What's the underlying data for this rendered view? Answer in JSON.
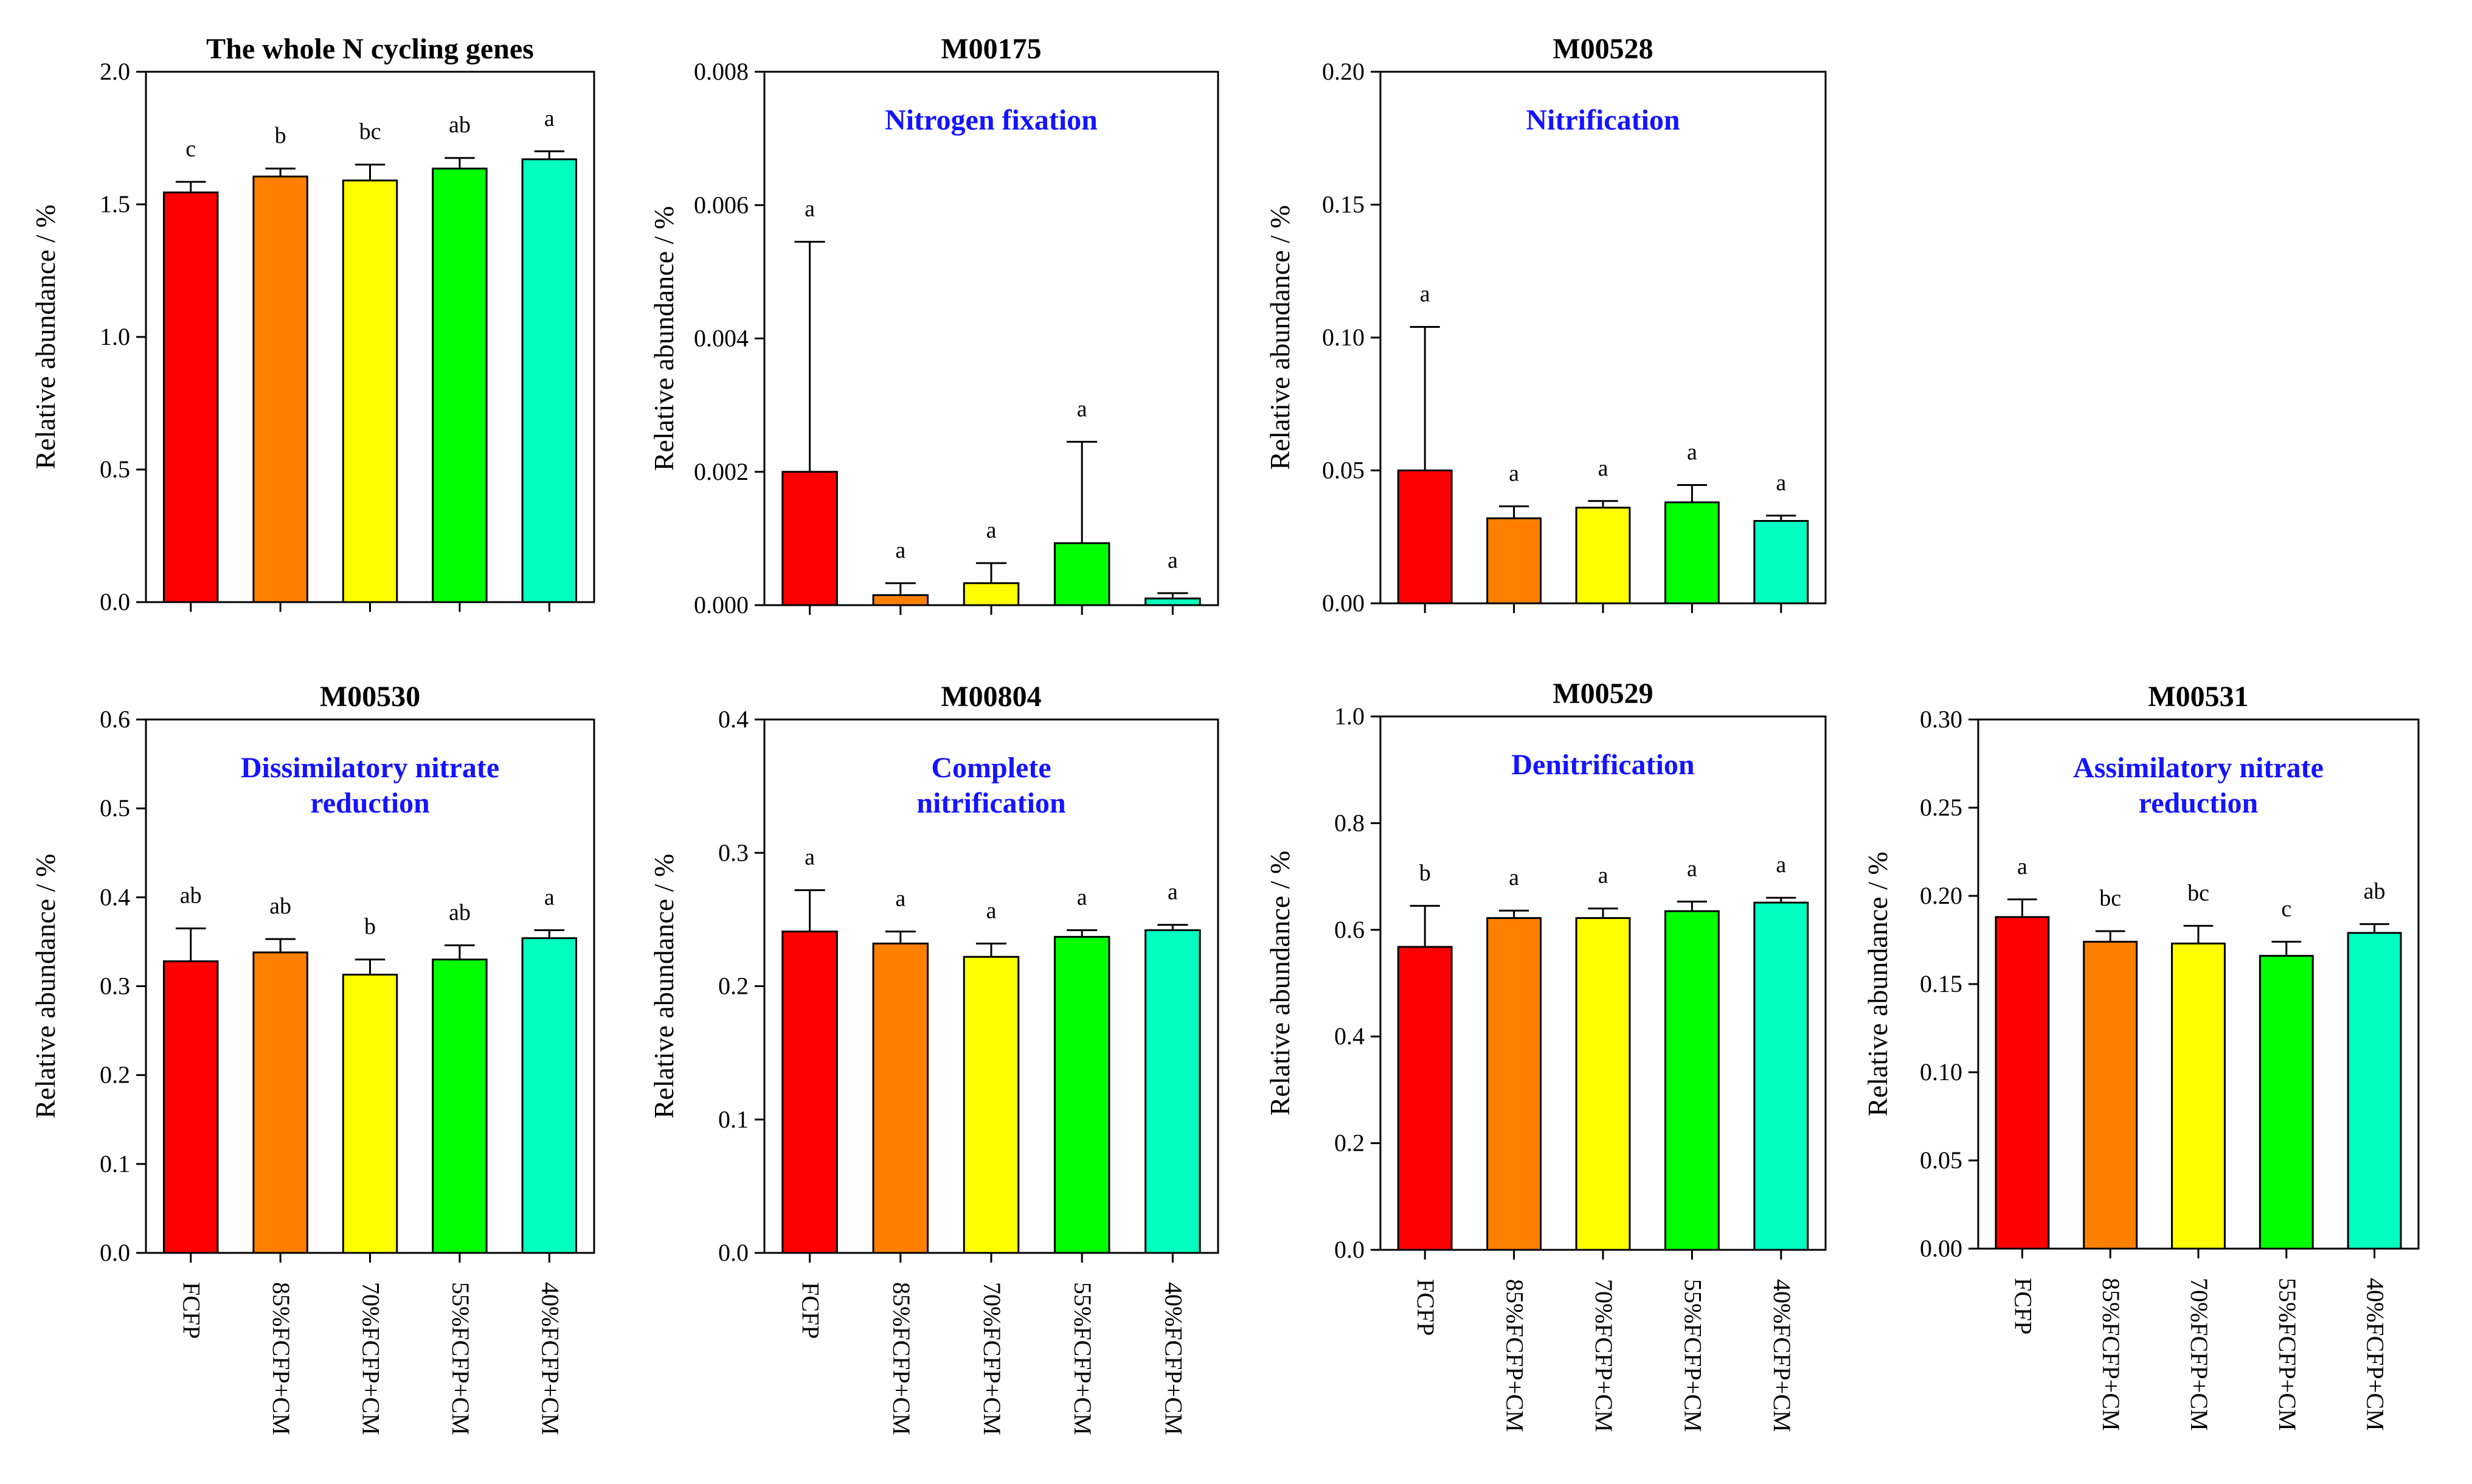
{
  "figure": {
    "categories": [
      "FCFP",
      "85%FCFP+CM",
      "70%FCFP+CM",
      "55%FCFP+CM",
      "40%FCFP+CM"
    ],
    "colors": [
      "#ff0000",
      "#ff8000",
      "#ffff00",
      "#00ff00",
      "#00ffc0"
    ],
    "subtitle_color": "#1414ff"
  },
  "chart_data": [
    {
      "type": "bar",
      "title": "The whole N cycling genes",
      "subtitle": [],
      "ylabel": "Relative abundance / %",
      "ylim": [
        0,
        2.0
      ],
      "yticks": [
        "0.0",
        "0.5",
        "1.0",
        "1.5",
        "2.0"
      ],
      "categories": [
        "FCFP",
        "85%FCFP+CM",
        "70%FCFP+CM",
        "55%FCFP+CM",
        "40%FCFP+CM"
      ],
      "show_category_labels": false,
      "values": [
        1.545,
        1.605,
        1.59,
        1.635,
        1.67
      ],
      "errors": [
        0.04,
        0.03,
        0.06,
        0.04,
        0.03
      ],
      "letters": [
        "c",
        "b",
        "bc",
        "ab",
        "a"
      ]
    },
    {
      "type": "bar",
      "title": "M00175",
      "subtitle": [
        "Nitrogen fixation"
      ],
      "ylabel": "Relative abundance / %",
      "ylim": [
        0,
        0.008
      ],
      "yticks": [
        "0.000",
        "0.002",
        "0.004",
        "0.006",
        "0.008"
      ],
      "categories": [
        "FCFP",
        "85%FCFP+CM",
        "70%FCFP+CM",
        "55%FCFP+CM",
        "40%FCFP+CM"
      ],
      "show_category_labels": false,
      "values": [
        0.002,
        0.00015,
        0.00033,
        0.00093,
        0.0001
      ],
      "errors": [
        0.00345,
        0.00018,
        0.0003,
        0.00152,
        8e-05
      ],
      "letters": [
        "a",
        "a",
        "a",
        "a",
        "a"
      ]
    },
    {
      "type": "bar",
      "title": "M00528",
      "subtitle": [
        "Nitrification"
      ],
      "ylabel": "Relative abundance / %",
      "ylim": [
        0,
        0.2
      ],
      "yticks": [
        "0.00",
        "0.05",
        "0.10",
        "0.15",
        "0.20"
      ],
      "categories": [
        "FCFP",
        "85%FCFP+CM",
        "70%FCFP+CM",
        "55%FCFP+CM",
        "40%FCFP+CM"
      ],
      "show_category_labels": false,
      "values": [
        0.05,
        0.032,
        0.036,
        0.038,
        0.031
      ],
      "errors": [
        0.054,
        0.0045,
        0.0025,
        0.0065,
        0.002
      ],
      "letters": [
        "a",
        "a",
        "a",
        "a",
        "a"
      ]
    },
    {
      "type": "bar",
      "title": "M00530",
      "subtitle": [
        "Dissimilatory  nitrate",
        "reduction"
      ],
      "ylabel": "Relative abundance / %",
      "ylim": [
        0,
        0.6
      ],
      "yticks": [
        "0.0",
        "0.1",
        "0.2",
        "0.3",
        "0.4",
        "0.5",
        "0.6"
      ],
      "categories": [
        "FCFP",
        "85%FCFP+CM",
        "70%FCFP+CM",
        "55%FCFP+CM",
        "40%FCFP+CM"
      ],
      "show_category_labels": true,
      "values": [
        0.328,
        0.338,
        0.313,
        0.33,
        0.354
      ],
      "errors": [
        0.037,
        0.015,
        0.017,
        0.016,
        0.009
      ],
      "letters": [
        "ab",
        "ab",
        "b",
        "ab",
        "a"
      ]
    },
    {
      "type": "bar",
      "title": "M00804",
      "subtitle": [
        "Complete",
        "nitrification"
      ],
      "ylabel": "Relative abundance / %",
      "ylim": [
        0,
        0.4
      ],
      "yticks": [
        "0.0",
        "0.1",
        "0.2",
        "0.3",
        "0.4"
      ],
      "categories": [
        "FCFP",
        "85%FCFP+CM",
        "70%FCFP+CM",
        "55%FCFP+CM",
        "40%FCFP+CM"
      ],
      "show_category_labels": true,
      "values": [
        0.241,
        0.232,
        0.222,
        0.237,
        0.242
      ],
      "errors": [
        0.031,
        0.009,
        0.01,
        0.005,
        0.004
      ],
      "letters": [
        "a",
        "a",
        "a",
        "a",
        "a"
      ]
    },
    {
      "type": "bar",
      "title": "M00529",
      "subtitle": [
        "Denitrification"
      ],
      "ylabel": "Relative abundance / %",
      "ylim": [
        0,
        1.0
      ],
      "yticks": [
        "0.0",
        "0.2",
        "0.4",
        "0.6",
        "0.8",
        "1.0"
      ],
      "categories": [
        "FCFP",
        "85%FCFP+CM",
        "70%FCFP+CM",
        "55%FCFP+CM",
        "40%FCFP+CM"
      ],
      "show_category_labels": true,
      "values": [
        0.568,
        0.622,
        0.622,
        0.635,
        0.651
      ],
      "errors": [
        0.077,
        0.014,
        0.018,
        0.018,
        0.009
      ],
      "letters": [
        "b",
        "a",
        "a",
        "a",
        "a"
      ]
    },
    {
      "type": "bar",
      "title": "M00531",
      "subtitle": [
        "Assimilatory  nitrate",
        "reduction"
      ],
      "ylabel": "Relative abundance / %",
      "ylim": [
        0,
        0.3
      ],
      "yticks": [
        "0.00",
        "0.05",
        "0.10",
        "0.15",
        "0.20",
        "0.25",
        "0.30"
      ],
      "categories": [
        "FCFP",
        "85%FCFP+CM",
        "70%FCFP+CM",
        "55%FCFP+CM",
        "40%FCFP+CM"
      ],
      "show_category_labels": true,
      "values": [
        0.188,
        0.174,
        0.173,
        0.166,
        0.179
      ],
      "errors": [
        0.01,
        0.006,
        0.01,
        0.008,
        0.005
      ],
      "letters": [
        "a",
        "bc",
        "bc",
        "c",
        "ab"
      ]
    }
  ]
}
